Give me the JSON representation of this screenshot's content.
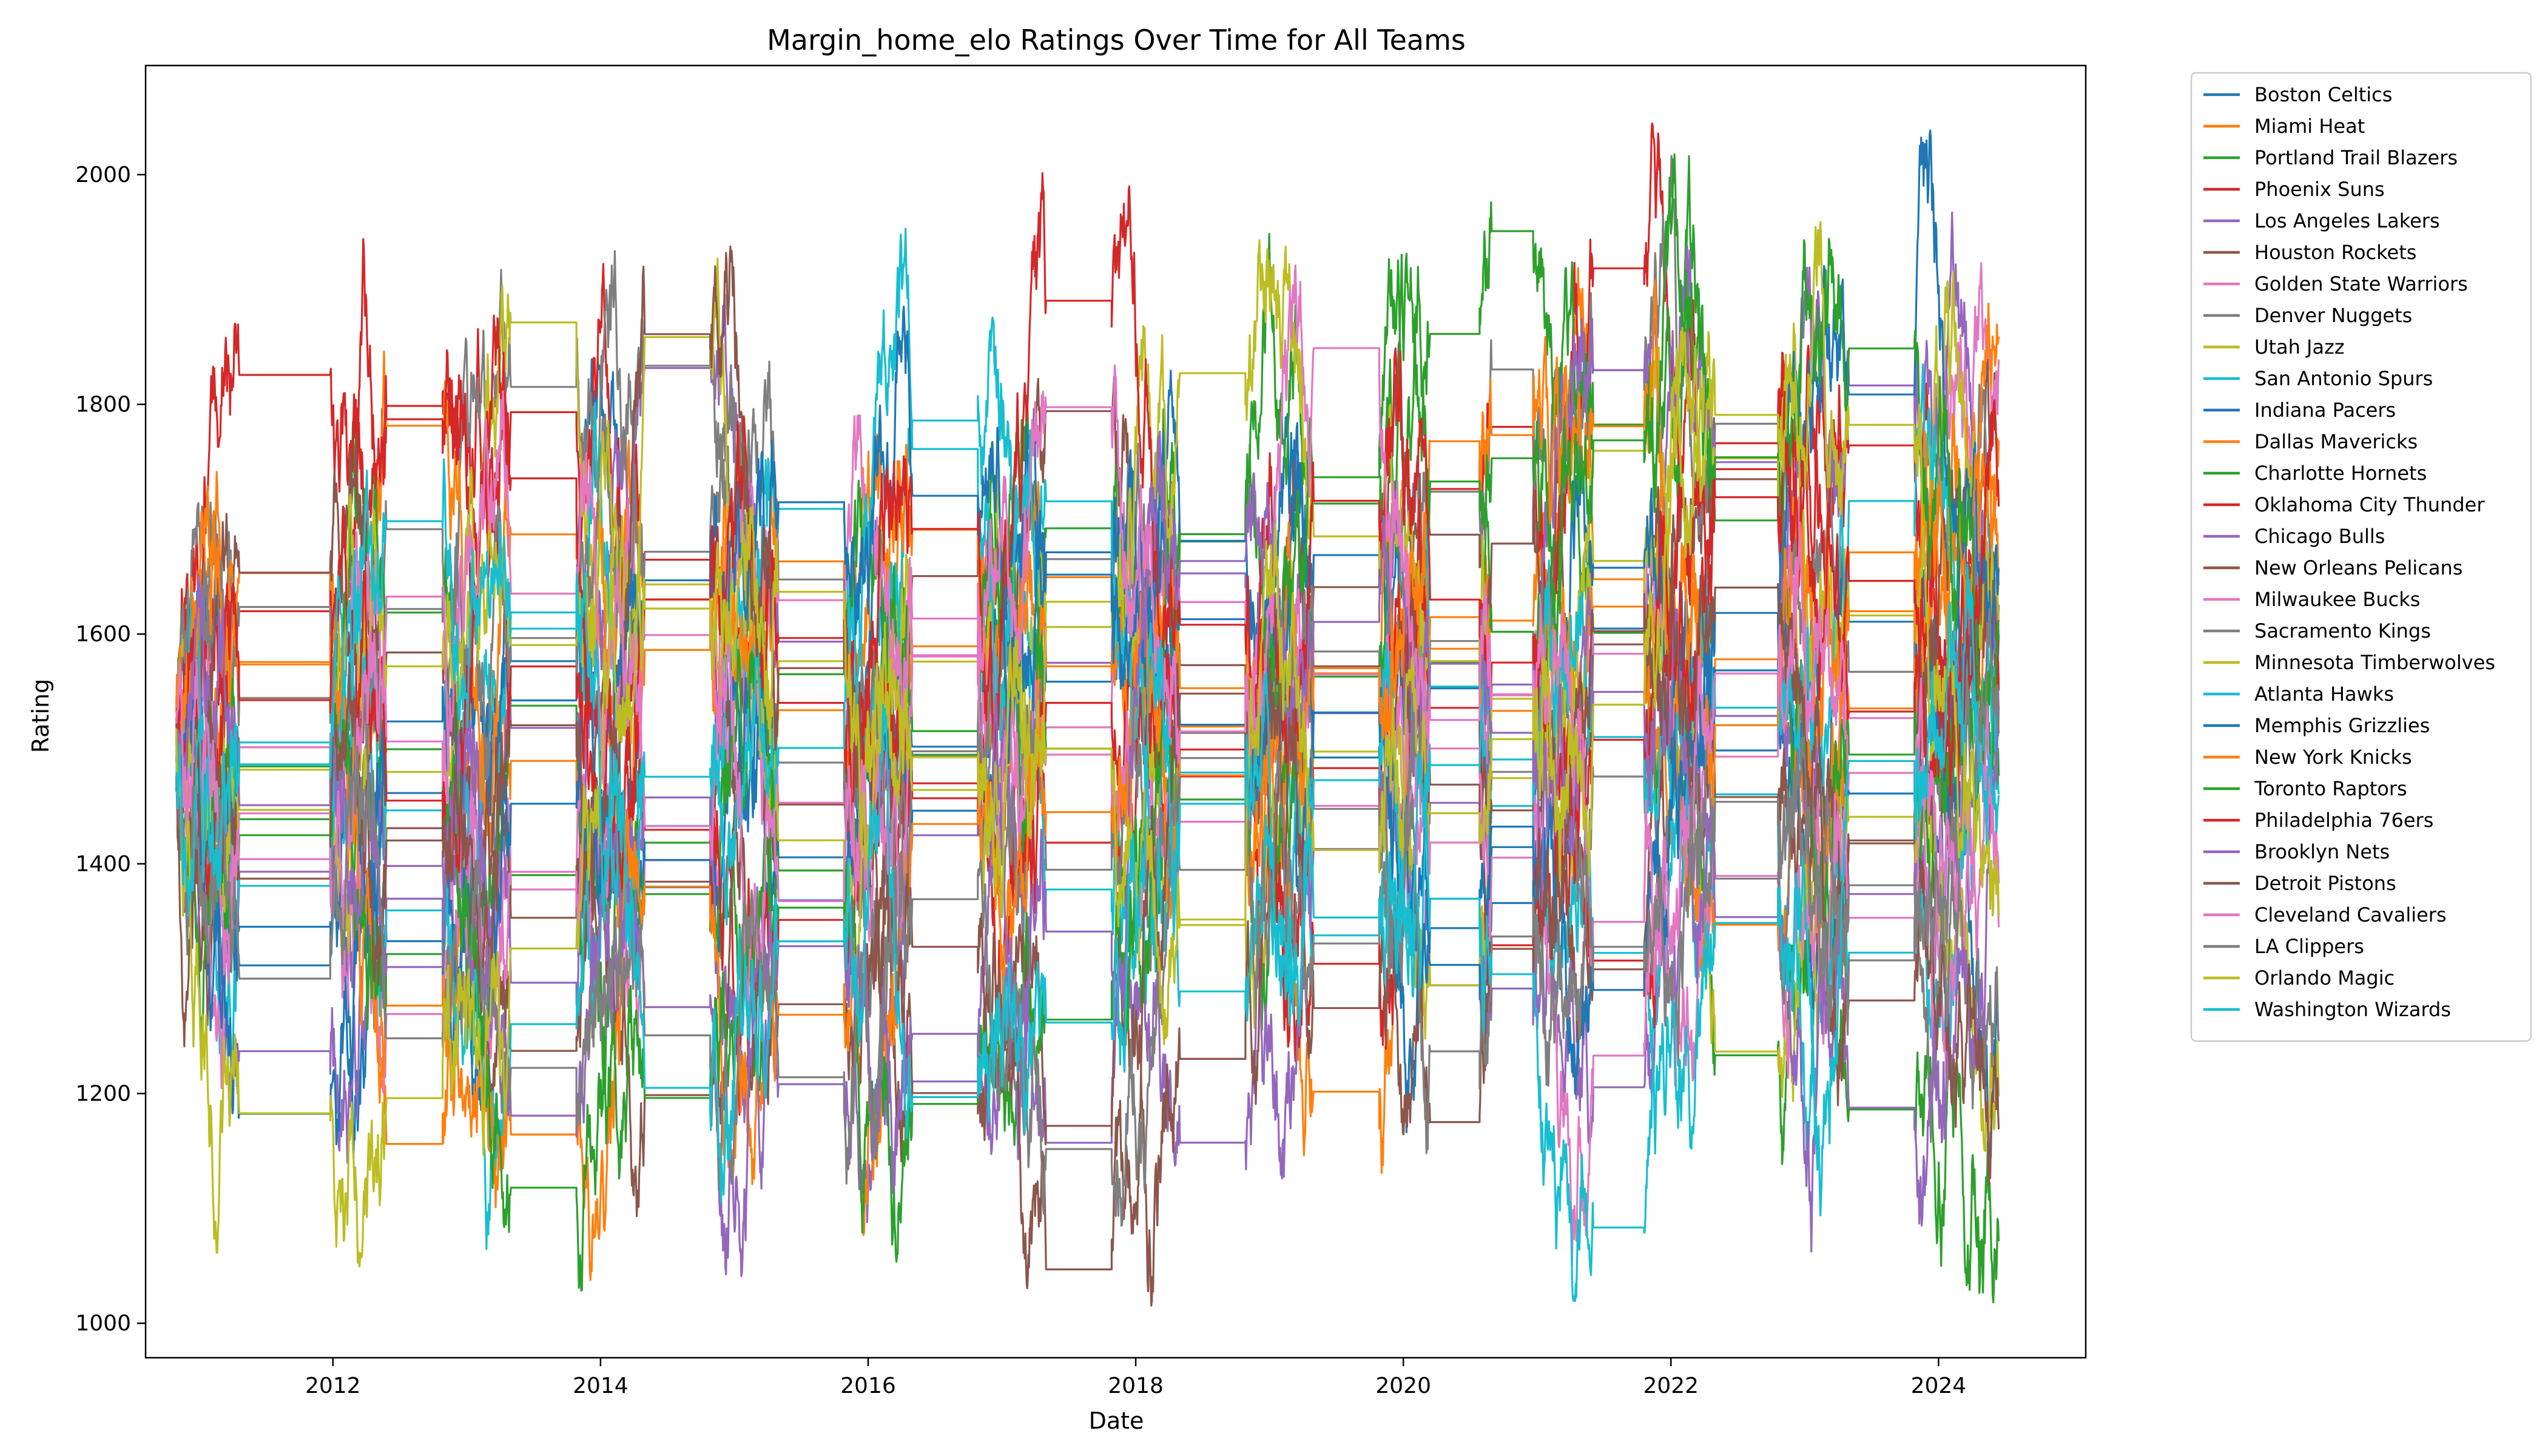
{
  "chart_data": {
    "type": "line",
    "title": "Margin_home_elo Ratings Over Time for All Teams",
    "xlabel": "Date",
    "ylabel": "Rating",
    "xlim": [
      2010.6,
      2025.1
    ],
    "ylim": [
      970,
      2095
    ],
    "x_ticks": [
      2012,
      2014,
      2016,
      2018,
      2020,
      2022,
      2024
    ],
    "y_ticks": [
      1000,
      1200,
      1400,
      1600,
      1800,
      2000
    ],
    "grid": false,
    "legend_position": "outside-right",
    "season_windows": [
      [
        2010.83,
        2011.3
      ],
      [
        2011.98,
        2012.4
      ],
      [
        2012.82,
        2013.33
      ],
      [
        2013.82,
        2014.33
      ],
      [
        2014.82,
        2015.33
      ],
      [
        2015.82,
        2016.33
      ],
      [
        2016.82,
        2017.33
      ],
      [
        2017.82,
        2018.33
      ],
      [
        2018.82,
        2019.33
      ],
      [
        2019.82,
        2020.2
      ],
      [
        2020.57,
        2020.66
      ],
      [
        2020.97,
        2021.42
      ],
      [
        2021.8,
        2022.33
      ],
      [
        2022.8,
        2023.33
      ],
      [
        2023.82,
        2024.45
      ]
    ],
    "series": [
      {
        "name": "Boston Celtics",
        "color": "#1f77b4",
        "seed": 1,
        "trend": 60
      },
      {
        "name": "Miami Heat",
        "color": "#ff7f0e",
        "seed": 2,
        "trend": 80
      },
      {
        "name": "Portland Trail Blazers",
        "color": "#2ca02c",
        "seed": 3,
        "trend": 0
      },
      {
        "name": "Phoenix Suns",
        "color": "#d62728",
        "seed": 4,
        "trend": 20
      },
      {
        "name": "Los Angeles Lakers",
        "color": "#9467bd",
        "seed": 5,
        "trend": 0
      },
      {
        "name": "Houston Rockets",
        "color": "#8c564b",
        "seed": 6,
        "trend": 30
      },
      {
        "name": "Golden State Warriors",
        "color": "#e377c2",
        "seed": 7,
        "trend": 150
      },
      {
        "name": "Denver Nuggets",
        "color": "#7f7f7f",
        "seed": 8,
        "trend": 50
      },
      {
        "name": "Utah Jazz",
        "color": "#bcbd22",
        "seed": 9,
        "trend": 0
      },
      {
        "name": "San Antonio Spurs",
        "color": "#17becf",
        "seed": 10,
        "trend": 90
      },
      {
        "name": "Indiana Pacers",
        "color": "#1f77b4",
        "seed": 11,
        "trend": 20
      },
      {
        "name": "Dallas Mavericks",
        "color": "#ff7f0e",
        "seed": 12,
        "trend": 20
      },
      {
        "name": "Charlotte Hornets",
        "color": "#2ca02c",
        "seed": 13,
        "trend": -60
      },
      {
        "name": "Oklahoma City Thunder",
        "color": "#d62728",
        "seed": 14,
        "trend": 40
      },
      {
        "name": "Chicago Bulls",
        "color": "#9467bd",
        "seed": 15,
        "trend": 0
      },
      {
        "name": "New Orleans Pelicans",
        "color": "#8c564b",
        "seed": 16,
        "trend": -20
      },
      {
        "name": "Milwaukee Bucks",
        "color": "#e377c2",
        "seed": 17,
        "trend": 40
      },
      {
        "name": "Sacramento Kings",
        "color": "#7f7f7f",
        "seed": 18,
        "trend": -40
      },
      {
        "name": "Minnesota Timberwolves",
        "color": "#bcbd22",
        "seed": 19,
        "trend": -20
      },
      {
        "name": "Atlanta Hawks",
        "color": "#17becf",
        "seed": 20,
        "trend": 0
      },
      {
        "name": "Memphis Grizzlies",
        "color": "#1f77b4",
        "seed": 21,
        "trend": 30
      },
      {
        "name": "New York Knicks",
        "color": "#ff7f0e",
        "seed": 22,
        "trend": -10
      },
      {
        "name": "Toronto Raptors",
        "color": "#2ca02c",
        "seed": 23,
        "trend": 30
      },
      {
        "name": "Philadelphia 76ers",
        "color": "#d62728",
        "seed": 24,
        "trend": -10
      },
      {
        "name": "Brooklyn Nets",
        "color": "#9467bd",
        "seed": 25,
        "trend": -10
      },
      {
        "name": "Detroit Pistons",
        "color": "#8c564b",
        "seed": 26,
        "trend": -70
      },
      {
        "name": "Cleveland Cavaliers",
        "color": "#e377c2",
        "seed": 27,
        "trend": 20
      },
      {
        "name": "LA Clippers",
        "color": "#7f7f7f",
        "seed": 28,
        "trend": 40
      },
      {
        "name": "Orlando Magic",
        "color": "#bcbd22",
        "seed": 29,
        "trend": -30
      },
      {
        "name": "Washington Wizards",
        "color": "#17becf",
        "seed": 30,
        "trend": -40
      }
    ]
  }
}
